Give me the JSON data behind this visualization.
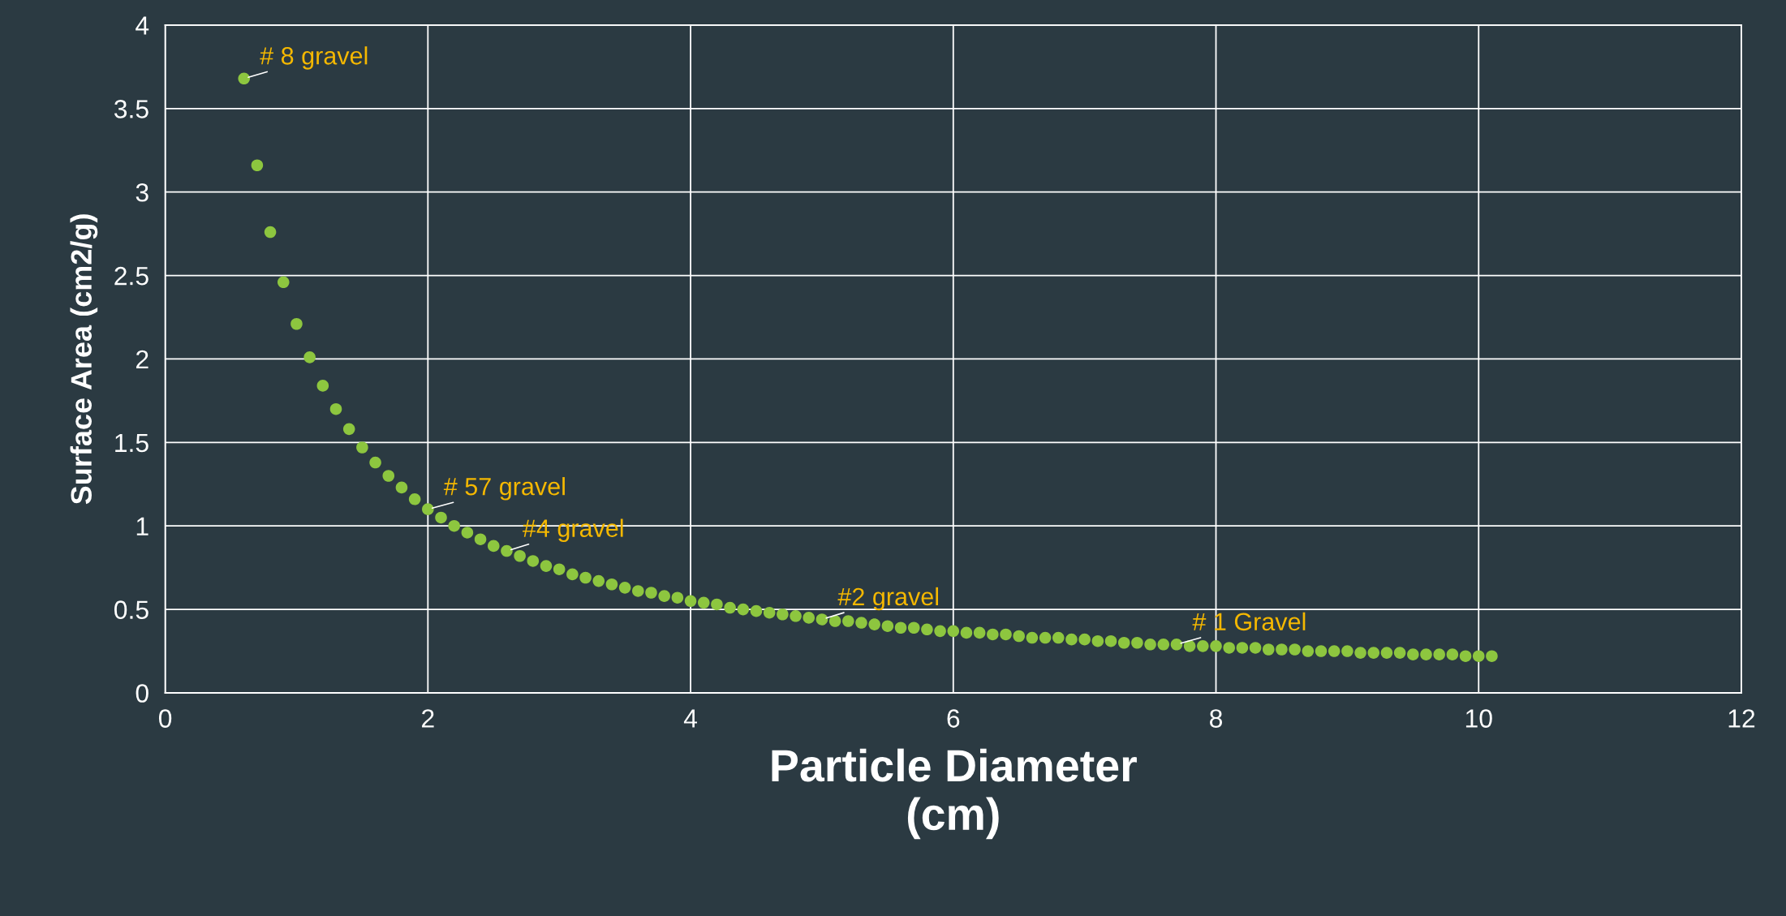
{
  "chart_data": {
    "type": "scatter",
    "xlabel": "Particle Diameter\n(cm)",
    "ylabel": "Surface Area (cm2/g)",
    "x": [
      0.6,
      0.7,
      0.8,
      0.9,
      1.0,
      1.1,
      1.2,
      1.3,
      1.4,
      1.5,
      1.6,
      1.7,
      1.8,
      1.9,
      2.0,
      2.1,
      2.2,
      2.3,
      2.4,
      2.5,
      2.6,
      2.7,
      2.8,
      2.9,
      3.0,
      3.1,
      3.2,
      3.3,
      3.4,
      3.5,
      3.6,
      3.7,
      3.8,
      3.9,
      4.0,
      4.1,
      4.2,
      4.3,
      4.4,
      4.5,
      4.6,
      4.7,
      4.8,
      4.9,
      5.0,
      5.1,
      5.2,
      5.3,
      5.4,
      5.5,
      5.6,
      5.7,
      5.8,
      5.9,
      6.0,
      6.1,
      6.2,
      6.3,
      6.4,
      6.5,
      6.6,
      6.7,
      6.8,
      6.9,
      7.0,
      7.1,
      7.2,
      7.3,
      7.4,
      7.5,
      7.6,
      7.7,
      7.8,
      7.9,
      8.0,
      8.1,
      8.2,
      8.3,
      8.4,
      8.5,
      8.6,
      8.7,
      8.8,
      8.9,
      9.0,
      9.1,
      9.2,
      9.3,
      9.4,
      9.5,
      9.6,
      9.7,
      9.8,
      9.9,
      10.0,
      10.1
    ],
    "series": [
      {
        "color": "#8dc63f",
        "values": [
          3.68,
          3.16,
          2.76,
          2.46,
          2.21,
          2.01,
          1.84,
          1.7,
          1.58,
          1.47,
          1.38,
          1.3,
          1.23,
          1.16,
          1.1,
          1.05,
          1.0,
          0.96,
          0.92,
          0.88,
          0.85,
          0.82,
          0.79,
          0.76,
          0.74,
          0.71,
          0.69,
          0.67,
          0.65,
          0.63,
          0.61,
          0.6,
          0.58,
          0.57,
          0.55,
          0.54,
          0.53,
          0.51,
          0.5,
          0.49,
          0.48,
          0.47,
          0.46,
          0.45,
          0.44,
          0.43,
          0.43,
          0.42,
          0.41,
          0.4,
          0.39,
          0.39,
          0.38,
          0.37,
          0.37,
          0.36,
          0.36,
          0.35,
          0.35,
          0.34,
          0.33,
          0.33,
          0.33,
          0.32,
          0.32,
          0.31,
          0.31,
          0.3,
          0.3,
          0.29,
          0.29,
          0.29,
          0.28,
          0.28,
          0.28,
          0.27,
          0.27,
          0.27,
          0.26,
          0.26,
          0.26,
          0.25,
          0.25,
          0.25,
          0.25,
          0.24,
          0.24,
          0.24,
          0.24,
          0.23,
          0.23,
          0.23,
          0.23,
          0.22,
          0.22,
          0.22
        ]
      }
    ],
    "annotations": [
      {
        "text": "# 8 gravel",
        "x": 0.6,
        "y": 3.68
      },
      {
        "text": "# 57 gravel",
        "x": 2.0,
        "y": 1.1
      },
      {
        "text": "#4 gravel",
        "x": 2.6,
        "y": 0.85
      },
      {
        "text": "#2 gravel",
        "x": 5.0,
        "y": 0.44
      },
      {
        "text": "# 1 Gravel",
        "x": 7.7,
        "y": 0.29
      }
    ],
    "xlim": [
      0,
      12
    ],
    "xticks": [
      0,
      2,
      4,
      6,
      8,
      10,
      12
    ],
    "ylim": [
      0,
      4
    ],
    "yticks": [
      0,
      0.5,
      1,
      1.5,
      2,
      2.5,
      3,
      3.5,
      4
    ],
    "grid": true,
    "marker": "circle",
    "legend": false
  }
}
